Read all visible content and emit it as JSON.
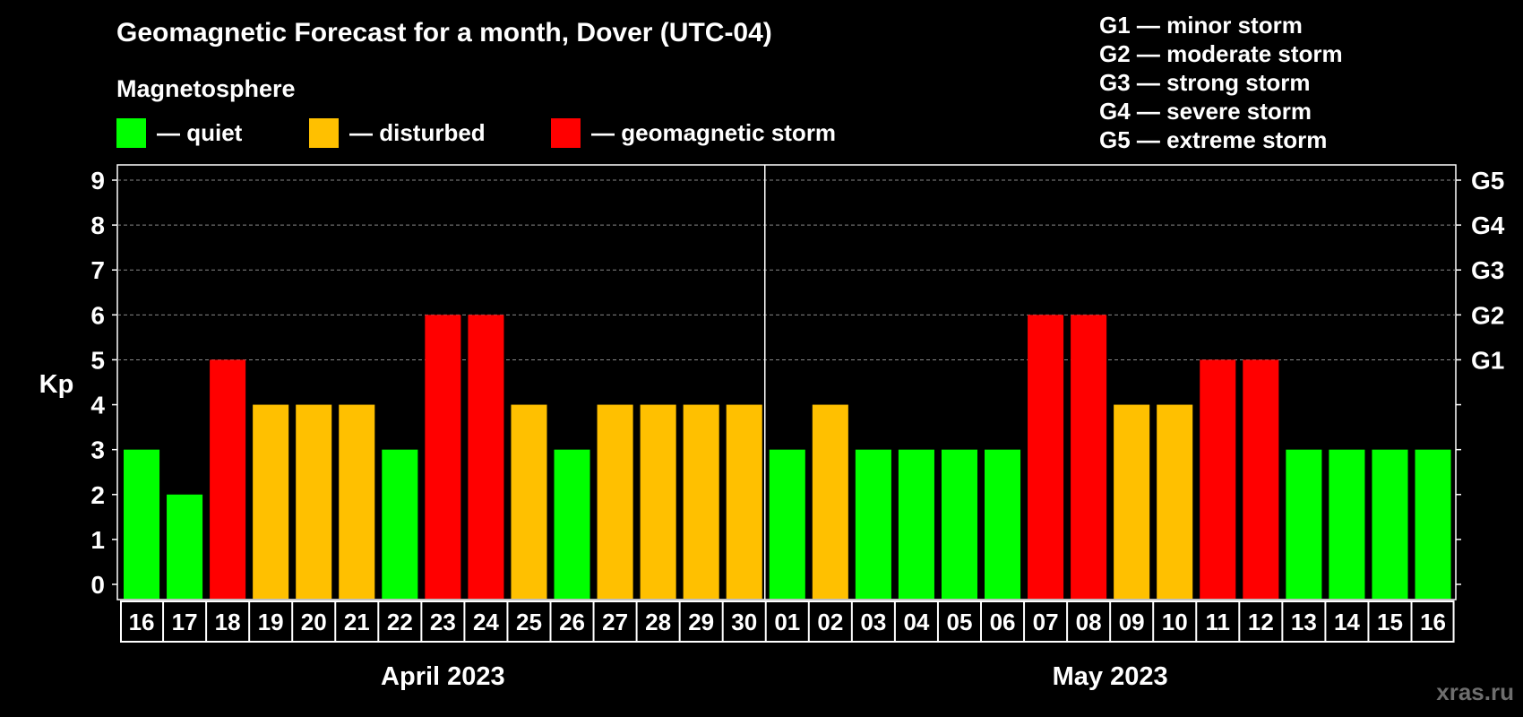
{
  "header": {
    "title": "Geomagnetic Forecast for a month, Dover (UTC-04)",
    "subtitle": "Magnetosphere"
  },
  "legend": {
    "items": [
      {
        "label": "— quiet",
        "color": "#00ff00"
      },
      {
        "label": "— disturbed",
        "color": "#ffc000"
      },
      {
        "label": "— geomagnetic storm",
        "color": "#ff0000"
      }
    ]
  },
  "g_legend": [
    "G1 — minor storm",
    "G2 — moderate storm",
    "G3 — strong storm",
    "G4 — severe storm",
    "G5 — extreme storm"
  ],
  "watermark": "xras.ru",
  "chart_data": {
    "type": "bar",
    "ylabel": "Kp",
    "ylim": [
      0,
      9
    ],
    "yticks": [
      0,
      1,
      2,
      3,
      4,
      5,
      6,
      7,
      8,
      9
    ],
    "right_axis_labels": [
      {
        "value": 5,
        "label": "G1"
      },
      {
        "value": 6,
        "label": "G2"
      },
      {
        "value": 7,
        "label": "G3"
      },
      {
        "value": 8,
        "label": "G4"
      },
      {
        "value": 9,
        "label": "G5"
      }
    ],
    "grid": "dashed horizontal at 5-9",
    "categories": [
      "16",
      "17",
      "18",
      "19",
      "20",
      "21",
      "22",
      "23",
      "24",
      "25",
      "26",
      "27",
      "28",
      "29",
      "30",
      "01",
      "02",
      "03",
      "04",
      "05",
      "06",
      "07",
      "08",
      "09",
      "10",
      "11",
      "12",
      "13",
      "14",
      "15",
      "16"
    ],
    "values": [
      3,
      2,
      5,
      4,
      4,
      4,
      3,
      6,
      6,
      4,
      3,
      4,
      4,
      4,
      4,
      3,
      4,
      3,
      3,
      3,
      3,
      6,
      6,
      4,
      4,
      5,
      5,
      3,
      3,
      3,
      3
    ],
    "months": [
      {
        "label": "April 2023",
        "start": 0,
        "end": 14
      },
      {
        "label": "May 2023",
        "start": 15,
        "end": 30
      }
    ],
    "color_rule": {
      "quiet_max": 3,
      "disturbed": 4,
      "storm_min": 5
    },
    "colors": {
      "quiet": "#00ff00",
      "disturbed": "#ffc000",
      "storm": "#ff0000"
    }
  }
}
